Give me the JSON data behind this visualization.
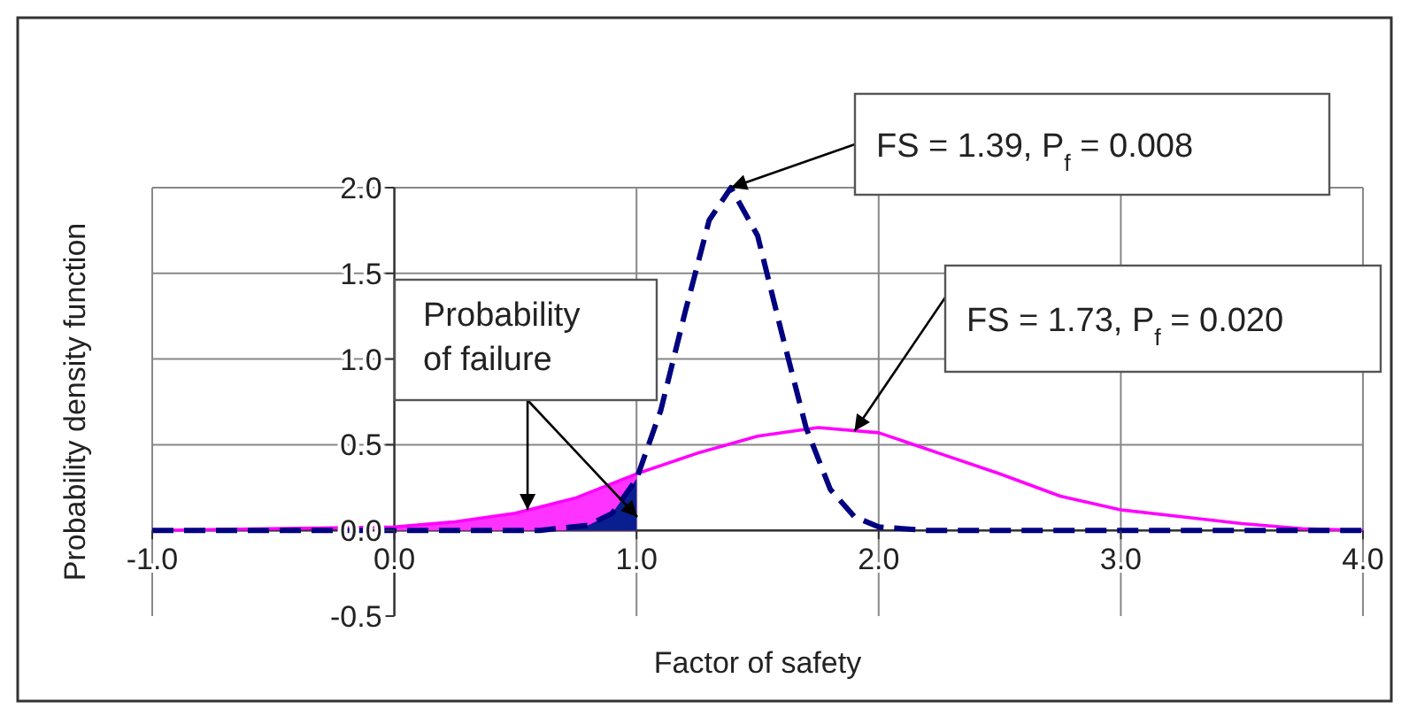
{
  "chart_data": {
    "type": "line",
    "xlabel": "Factor of safety",
    "ylabel": "Probability density function",
    "xlim": [
      -1,
      4
    ],
    "xticks": [
      {
        "value": -1,
        "label": "-1.0"
      },
      {
        "value": 0,
        "label": "0.0"
      },
      {
        "value": 1,
        "label": "1.0"
      },
      {
        "value": 2,
        "label": "2.0"
      },
      {
        "value": 3,
        "label": "3.0"
      },
      {
        "value": 4,
        "label": "4.0"
      }
    ],
    "ylim": [
      -0.5,
      2
    ],
    "yticks": [
      {
        "value": -0.5,
        "label": "-0.5"
      },
      {
        "value": 0,
        "label": "0.0"
      },
      {
        "value": 0.5,
        "label": "0.5"
      },
      {
        "value": 1,
        "label": "1.0"
      },
      {
        "value": 1.5,
        "label": "1.5"
      },
      {
        "value": 2,
        "label": "2.0"
      }
    ],
    "grid": true,
    "series": [
      {
        "type": "area",
        "color": "#ff33ff",
        "x": [
          0,
          0.25,
          0.5,
          0.75,
          1.0
        ],
        "values": [
          0.02,
          0.05,
          0.1,
          0.19,
          0.33
        ]
      },
      {
        "type": "area",
        "color": "#0a1f8f",
        "x": [
          0.7,
          0.8,
          0.9,
          1.0
        ],
        "values": [
          0.0,
          0.03,
          0.1,
          0.3
        ]
      },
      {
        "color": "#ff00ff",
        "line_style": "solid",
        "x": [
          -1,
          0,
          0.25,
          0.5,
          0.75,
          1,
          1.25,
          1.5,
          1.75,
          2,
          2.25,
          2.5,
          2.75,
          3,
          3.25,
          3.5,
          3.75,
          4
        ],
        "values": [
          0,
          0.02,
          0.05,
          0.1,
          0.19,
          0.33,
          0.45,
          0.55,
          0.6,
          0.57,
          0.45,
          0.33,
          0.2,
          0.12,
          0.08,
          0.04,
          0.01,
          0
        ]
      },
      {
        "color": "#000080",
        "line_style": "dashed",
        "x": [
          -1,
          0,
          0.6,
          0.8,
          0.9,
          1.0,
          1.1,
          1.2,
          1.3,
          1.39,
          1.5,
          1.6,
          1.7,
          1.8,
          1.9,
          2.0,
          2.2,
          4
        ],
        "values": [
          0,
          0,
          0,
          0.03,
          0.1,
          0.3,
          0.7,
          1.27,
          1.81,
          2.0,
          1.72,
          1.15,
          0.6,
          0.24,
          0.08,
          0.02,
          0,
          0
        ]
      }
    ],
    "annotations": [
      {
        "text": "FS = 1.39, P$_{f}$ = 0.008",
        "x": 1.39,
        "y": 2.0
      },
      {
        "text": "FS = 1.73, P$_{f}$ = 0.020",
        "x": 1.9,
        "y": 0.58
      },
      {
        "text": "Probability of failure",
        "x": 0.55,
        "y": 0.12
      }
    ]
  }
}
